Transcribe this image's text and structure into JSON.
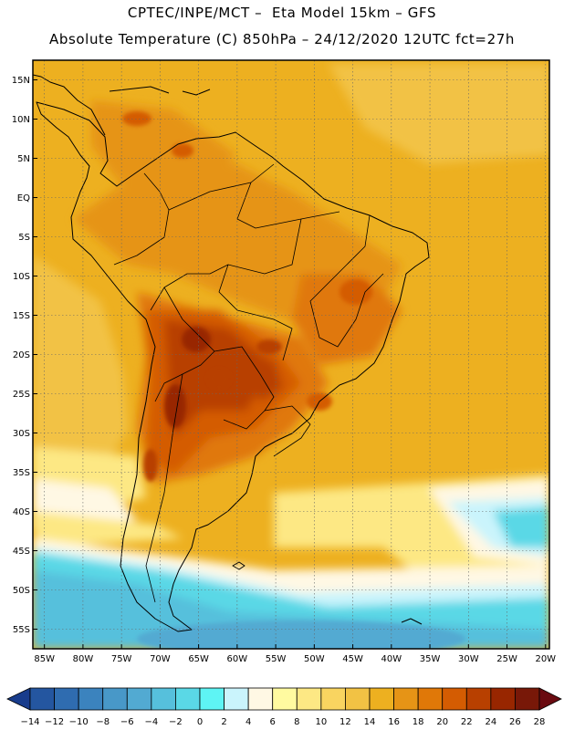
{
  "header": {
    "line1": "CPTEC/INPE/MCT –  Eta Model 15km – GFS",
    "line2": "Absolute Temperature (C) 850hPa – 24/12/2020 12UTC fct=27h"
  },
  "map": {
    "lat_ticks": [
      "15N",
      "10N",
      "5N",
      "EQ",
      "5S",
      "10S",
      "15S",
      "20S",
      "25S",
      "30S",
      "35S",
      "40S",
      "45S",
      "50S",
      "55S"
    ],
    "lon_ticks": [
      "85W",
      "80W",
      "75W",
      "70W",
      "65W",
      "60W",
      "55W",
      "50W",
      "45W",
      "40W",
      "35W",
      "30W",
      "25W",
      "20W"
    ],
    "lat_range": [
      17.5,
      -57.5
    ],
    "lon_range": [
      -86.5,
      -19.5
    ]
  },
  "colorbar": {
    "labels": [
      "-14",
      "-12",
      "-10",
      "-8",
      "-6",
      "-4",
      "-2",
      "0",
      "2",
      "4",
      "6",
      "8",
      "10",
      "12",
      "14",
      "16",
      "18",
      "20",
      "22",
      "24",
      "26",
      "28"
    ],
    "colors": [
      "#183c8c",
      "#2456a0",
      "#2f6cb0",
      "#3b83be",
      "#4898c8",
      "#52aad2",
      "#56c0dc",
      "#5ad8e6",
      "#5ef4f4",
      "#caf4fc",
      "#fff8e4",
      "#fffaa0",
      "#fde884",
      "#f9d460",
      "#f2c244",
      "#edb020",
      "#e69416",
      "#e07808",
      "#d45c02",
      "#b84000",
      "#982600",
      "#781808",
      "#6a0a10"
    ]
  }
}
